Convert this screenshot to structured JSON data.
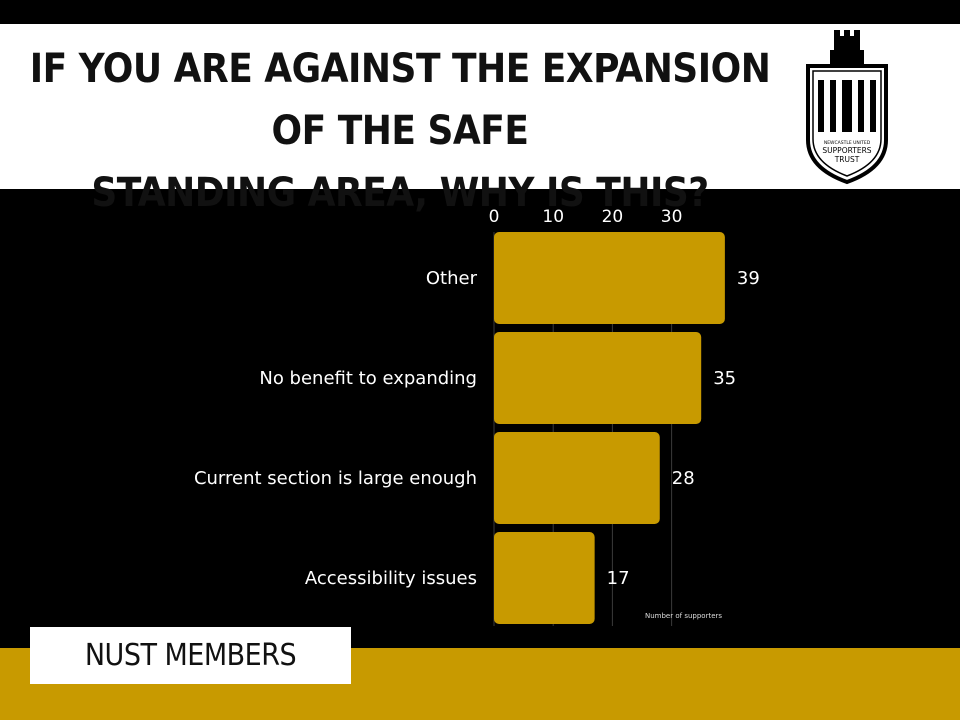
{
  "header": {
    "title_line1": "IF YOU ARE AGAINST THE EXPANSION OF THE SAFE",
    "title_line2": "STANDING AREA, WHY IS THIS?"
  },
  "logo": {
    "icon": "castle-shield-icon",
    "line1": "NEWCASTLE UNITED",
    "line2": "SUPPORTERS",
    "line3": "TRUST"
  },
  "footer": {
    "label": "NUST MEMBERS"
  },
  "colors": {
    "bar": "#c89a00",
    "background": "#000000",
    "band": "#c89a00",
    "text": "#ffffff"
  },
  "chart_data": {
    "type": "bar",
    "orientation": "horizontal",
    "title": "IF YOU ARE AGAINST THE EXPANSION OF THE SAFE STANDING AREA, WHY IS THIS?",
    "categories": [
      "Other",
      "No benefit to expanding",
      "Current section is large enough",
      "Accessibility issues"
    ],
    "values": [
      39,
      35,
      28,
      17
    ],
    "xlabel": "Number of supporters",
    "ylabel": "",
    "xticks": [
      0,
      10,
      20,
      30
    ],
    "xlim": [
      0,
      40
    ],
    "axis_position": "top",
    "grid": true,
    "data_labels": true
  }
}
